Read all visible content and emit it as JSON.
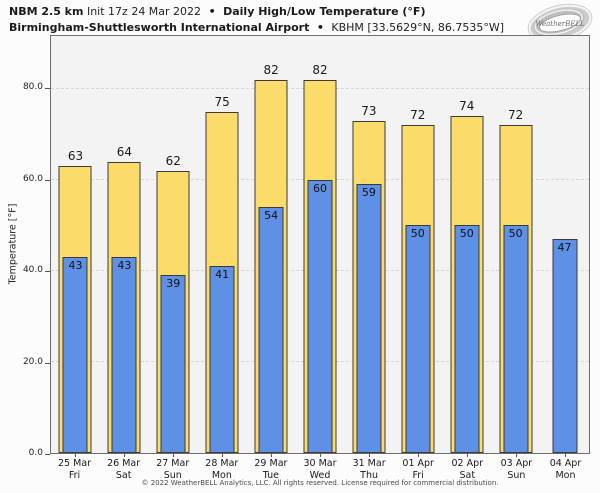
{
  "header": {
    "model": "NBM 2.5 km",
    "init": "Init 17z 24 Mar 2022",
    "bullet": "•",
    "product": "Daily High/Low Temperature (°F)",
    "station": "Birmingham-Shuttlesworth International Airport",
    "location": "KBHM [33.5629°N, 86.7535°W]"
  },
  "logo": {
    "brand": "WeatherBELL"
  },
  "footer": "© 2022 WeatherBELL Analytics, LLC. All rights reserved. License required for commercial distribution.",
  "chart_data": {
    "type": "bar",
    "title": "NBM 2.5 km Init 17z 24 Mar 2022 • Daily High/Low Temperature (°F)",
    "subtitle": "Birmingham-Shuttlesworth International Airport • KBHM [33.5629°N, 86.7535°W]",
    "ylabel": "Temperature [°F]",
    "ylim": [
      0,
      91.6
    ],
    "grid": true,
    "gridline_values": [
      20,
      40,
      60,
      80
    ],
    "yticks": [
      {
        "label": "0.0",
        "value": 0
      },
      {
        "label": "20.0",
        "value": 20
      },
      {
        "label": "40.0",
        "value": 40
      },
      {
        "label": "60.0",
        "value": 60
      },
      {
        "label": "80.0",
        "value": 80
      }
    ],
    "categories": [
      {
        "date": "25 Mar",
        "day": "Fri"
      },
      {
        "date": "26 Mar",
        "day": "Sat"
      },
      {
        "date": "27 Mar",
        "day": "Sun"
      },
      {
        "date": "28 Mar",
        "day": "Mon"
      },
      {
        "date": "29 Mar",
        "day": "Tue"
      },
      {
        "date": "30 Mar",
        "day": "Wed"
      },
      {
        "date": "31 Mar",
        "day": "Thu"
      },
      {
        "date": "01 Apr",
        "day": "Fri"
      },
      {
        "date": "02 Apr",
        "day": "Sat"
      },
      {
        "date": "03 Apr",
        "day": "Sun"
      },
      {
        "date": "04 Apr",
        "day": "Mon"
      }
    ],
    "series": [
      {
        "name": "High",
        "color": "#FBDC6B",
        "values": [
          63,
          64,
          62,
          75,
          82,
          82,
          73,
          72,
          74,
          72,
          null
        ]
      },
      {
        "name": "Low",
        "color": "#5E90E6",
        "values": [
          43,
          43,
          39,
          41,
          54,
          60,
          59,
          50,
          50,
          50,
          47
        ]
      }
    ],
    "legend": null
  }
}
